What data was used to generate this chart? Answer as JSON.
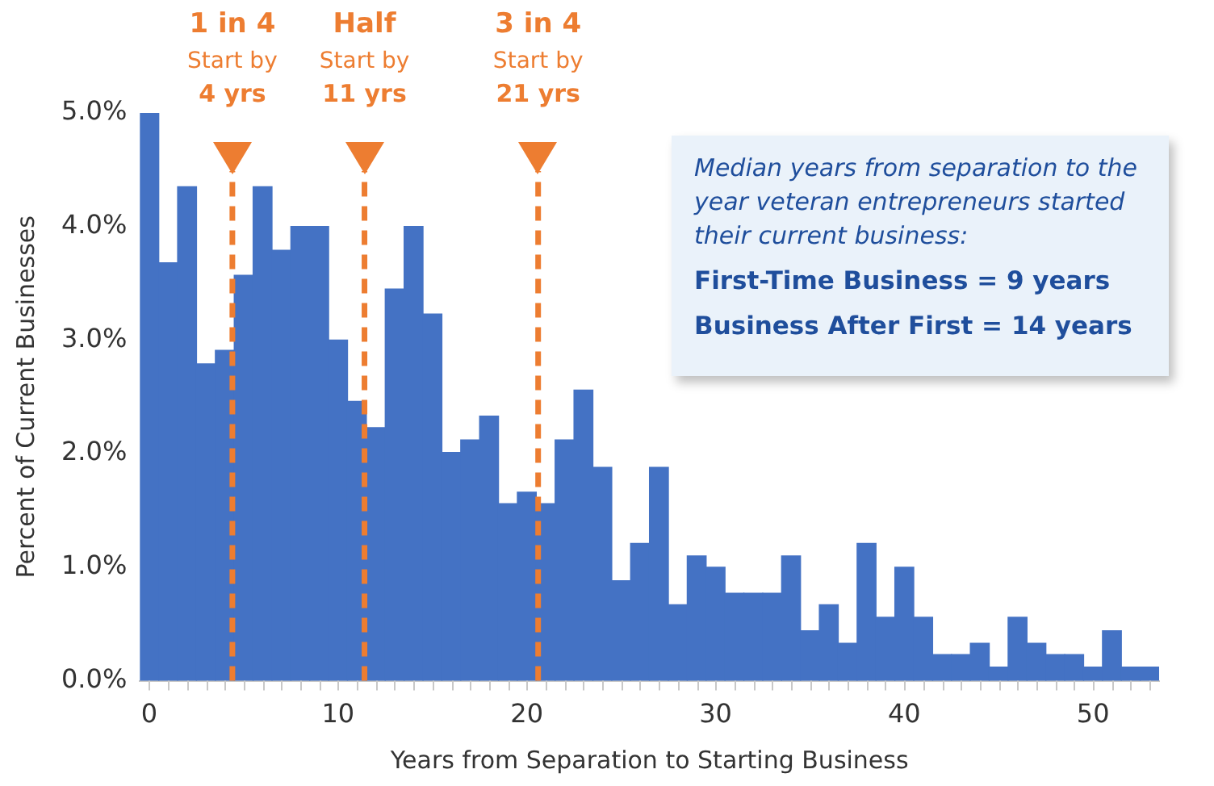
{
  "chart_data": {
    "type": "histogram",
    "xlabel": "Years from Separation to Starting Business",
    "ylabel": "Percent of Current Businesses",
    "bins": [
      -0.5,
      0.5,
      1.5,
      2.5,
      3.5,
      4.5,
      5.5,
      6.5,
      7.5,
      8.5,
      9.5,
      10.5,
      11.5,
      12.5,
      13.5,
      14.5,
      15.5,
      16.5,
      17.5,
      18.5,
      19.5,
      20.5,
      21.5,
      22.5,
      23.5,
      24.5,
      25.5,
      26.5,
      27.5,
      28.5,
      29.5,
      30.5,
      31.5,
      32.5,
      33.5,
      34.5,
      35.5,
      36.5,
      37.5,
      38.5,
      39.5,
      40.5,
      41.5,
      42.5,
      43.5,
      44.5,
      45.5,
      46.5,
      47.5,
      48.5,
      49.5,
      50.5,
      51.5,
      52.5,
      53.5
    ],
    "values": [
      5.0,
      3.68,
      4.35,
      2.79,
      2.91,
      3.57,
      4.35,
      3.79,
      4.0,
      4.0,
      3.0,
      2.46,
      2.23,
      3.45,
      4.0,
      3.23,
      2.01,
      2.12,
      2.33,
      1.56,
      1.66,
      1.56,
      2.12,
      2.56,
      1.88,
      0.88,
      1.21,
      1.88,
      0.67,
      1.1,
      1.0,
      0.77,
      0.77,
      0.77,
      1.1,
      0.44,
      0.67,
      0.33,
      1.21,
      0.56,
      1.0,
      0.56,
      0.23,
      0.23,
      0.33,
      0.12,
      0.56,
      0.33,
      0.23,
      0.23,
      0.12,
      0.44,
      0.12,
      0.12
    ],
    "color": "#4472c4",
    "xlim": [
      -0.5,
      53.5
    ],
    "xticks": [
      0,
      {
        "value": 1,
        "label": null
      },
      {
        "value": 2,
        "label": null
      },
      {
        "value": 3,
        "label": null
      },
      {
        "value": 4,
        "label": null
      },
      {
        "value": 5,
        "label": null
      },
      {
        "value": 6,
        "label": null
      },
      {
        "value": 7,
        "label": null
      },
      {
        "value": 8,
        "label": null
      },
      {
        "value": 9,
        "label": null
      },
      10,
      {
        "value": 11,
        "label": null
      },
      {
        "value": 12,
        "label": null
      },
      {
        "value": 13,
        "label": null
      },
      {
        "value": 14,
        "label": null
      },
      {
        "value": 15,
        "label": null
      },
      {
        "value": 16,
        "label": null
      },
      {
        "value": 17,
        "label": null
      },
      {
        "value": 18,
        "label": null
      },
      {
        "value": 19,
        "label": null
      },
      20,
      {
        "value": 21,
        "label": null
      },
      {
        "value": 22,
        "label": null
      },
      {
        "value": 23,
        "label": null
      },
      {
        "value": 24,
        "label": null
      },
      {
        "value": 25,
        "label": null
      },
      {
        "value": 26,
        "label": null
      },
      {
        "value": 27,
        "label": null
      },
      {
        "value": 28,
        "label": null
      },
      {
        "value": 29,
        "label": null
      },
      30,
      {
        "value": 31,
        "label": null
      },
      {
        "value": 32,
        "label": null
      },
      {
        "value": 33,
        "label": null
      },
      {
        "value": 34,
        "label": null
      },
      {
        "value": 35,
        "label": null
      },
      {
        "value": 36,
        "label": null
      },
      {
        "value": 37,
        "label": null
      },
      {
        "value": 38,
        "label": null
      },
      {
        "value": 39,
        "label": null
      },
      40,
      {
        "value": 41,
        "label": null
      },
      {
        "value": 42,
        "label": null
      },
      {
        "value": 43,
        "label": null
      },
      {
        "value": 44,
        "label": null
      },
      {
        "value": 45,
        "label": null
      },
      {
        "value": 46,
        "label": null
      },
      {
        "value": 47,
        "label": null
      },
      {
        "value": 48,
        "label": null
      },
      {
        "value": 49,
        "label": null
      },
      50,
      {
        "value": 51,
        "label": null
      },
      {
        "value": 52,
        "label": null
      },
      {
        "value": 53,
        "label": null
      }
    ],
    "ylim": [
      0,
      5
    ],
    "yticks": [
      {
        "value": 0,
        "label": "0.0%"
      },
      {
        "value": 1,
        "label": "1.0%"
      },
      {
        "value": 2,
        "label": "2.0%"
      },
      {
        "value": 3,
        "label": "3.0%"
      },
      {
        "value": 4,
        "label": "4.0%"
      },
      {
        "value": 5,
        "label": "5.0%"
      }
    ],
    "grid": false,
    "ref_lines": [
      {
        "axis": "x",
        "value": 4.4,
        "label": "1 in 4\nStart by\n4 yrs",
        "color": "#ed7d31",
        "line_style": "dashed"
      },
      {
        "axis": "x",
        "value": 11.4,
        "label": "Half\nStart by\n11 yrs",
        "color": "#ed7d31",
        "line_style": "dashed"
      },
      {
        "axis": "x",
        "value": 20.6,
        "label": "3 in 4\nStart by\n21 yrs",
        "color": "#ed7d31",
        "line_style": "dashed"
      }
    ],
    "annotations": [
      "Median years from separation to the year veteran entrepreneurs started their current business:",
      "First-Time Business = 9 years",
      "Business After First = 14 years"
    ]
  }
}
